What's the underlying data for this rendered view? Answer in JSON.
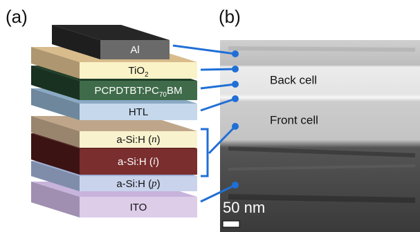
{
  "panel_labels": [
    "(a)",
    "(b)"
  ],
  "layers": [
    {
      "parts": [
        {
          "t": "Al"
        }
      ],
      "front": "#6a6a6a",
      "top": "#262626",
      "ink": "#ffffff"
    },
    {
      "parts": [
        {
          "t": "TiO"
        },
        {
          "t": "2",
          "style": "sub"
        }
      ],
      "front": "#fbf3c8",
      "top": "#d9bc8c",
      "ink": "#111111"
    },
    {
      "parts": [
        {
          "t": "PCPDTBT:PC"
        },
        {
          "t": "70",
          "style": "sub"
        },
        {
          "t": "BM"
        }
      ],
      "front": "#3f6b4a",
      "top": "#1f3d28",
      "ink": "#ffffff"
    },
    {
      "parts": [
        {
          "t": "HTL"
        }
      ],
      "front": "#c5d8ec",
      "top": "#8aa9c4",
      "ink": "#111111"
    },
    {
      "parts": [
        {
          "t": "a-Si:H ("
        },
        {
          "t": "n",
          "style": "italic"
        },
        {
          "t": ")"
        }
      ],
      "front": "#f9f2cf",
      "top": "#bfa68a",
      "ink": "#111111"
    },
    {
      "parts": [
        {
          "t": "a-Si:H ("
        },
        {
          "t": "i",
          "style": "italic"
        },
        {
          "t": ")"
        }
      ],
      "front": "#7a2e2e",
      "top": "#4a1818",
      "ink": "#ffffff"
    },
    {
      "parts": [
        {
          "t": "a-Si:H ("
        },
        {
          "t": "p",
          "style": "italic"
        },
        {
          "t": ")"
        }
      ],
      "front": "#c9d3ec",
      "top": "#9fb0d6",
      "ink": "#111111"
    },
    {
      "parts": [
        {
          "t": "ITO"
        }
      ],
      "front": "#ddcde9",
      "top": "#c8b3dc",
      "ink": "#111111"
    }
  ],
  "tem_labels": [
    "Back cell",
    "Front cell"
  ],
  "scale_bar": "50 nm",
  "connector_color": "#1f6fd6"
}
